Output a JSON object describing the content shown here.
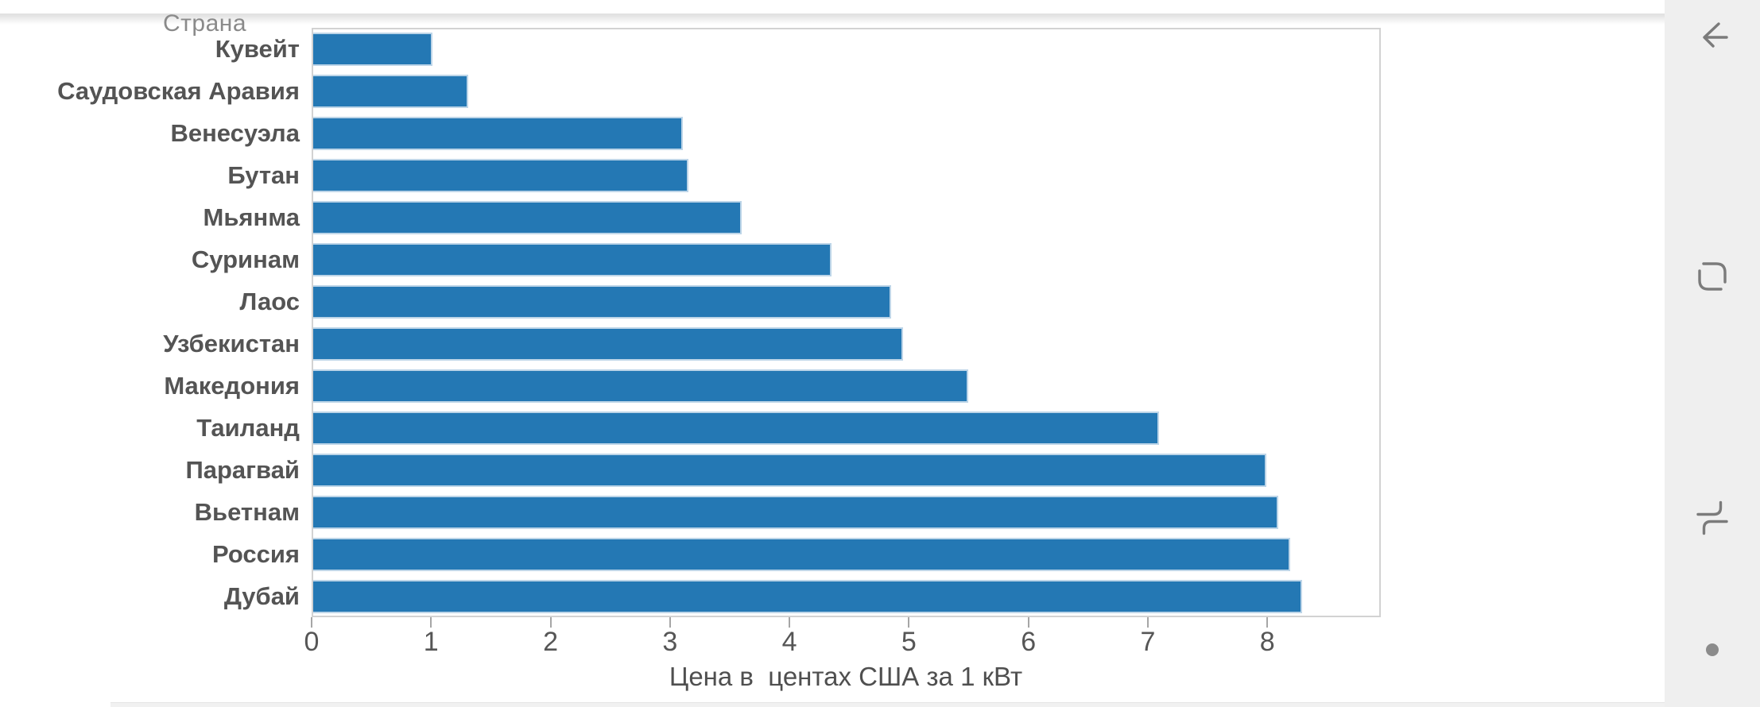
{
  "chart_data": {
    "type": "bar",
    "orientation": "horizontal",
    "header_label": "Страна",
    "categories": [
      "Кувейт",
      "Саудовская Аравия",
      "Венесуэла",
      "Бутан",
      "Мьянма",
      "Суринам",
      "Лаос",
      "Узбекистан",
      "Македония",
      "Таиланд",
      "Парагвай",
      "Вьетнам",
      "Россия",
      "Дубай"
    ],
    "values": [
      1.0,
      1.3,
      3.1,
      3.15,
      3.6,
      4.35,
      4.85,
      4.95,
      5.5,
      7.1,
      8.0,
      8.1,
      8.2,
      8.3
    ],
    "xlabel": "Цена в  центах США за 1 кВт",
    "ylabel": "Страна",
    "x_ticks": [
      0,
      1,
      2,
      3,
      4,
      5,
      6,
      7,
      8
    ],
    "xlim": [
      0,
      8.95
    ],
    "grid": false,
    "legend": false,
    "bar_color": "#2478b4",
    "bar_edge_color": "#bdd5e8"
  },
  "navbar": {
    "buttons": [
      {
        "name": "back"
      },
      {
        "name": "home"
      },
      {
        "name": "recents"
      },
      {
        "name": "hide-navbar-dot"
      }
    ]
  },
  "colors": {
    "text": "#545454",
    "muted_text": "#8a8a8a",
    "navbar_bg": "#efefef",
    "icon": "#7b7b7b",
    "plot_border": "#d2d2d2"
  }
}
